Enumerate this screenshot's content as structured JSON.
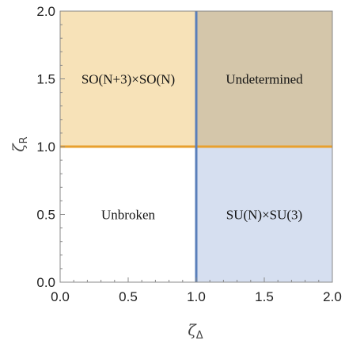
{
  "chart_data": {
    "type": "heatmap",
    "xlabel": {
      "main": "ζ",
      "sub": "Δ"
    },
    "ylabel": {
      "main": "ζ",
      "sub": "R"
    },
    "xlim": [
      0,
      2
    ],
    "ylim": [
      0,
      2
    ],
    "xticks": [
      0.0,
      0.5,
      1.0,
      1.5,
      2.0
    ],
    "yticks": [
      0.0,
      0.5,
      1.0,
      1.5,
      2.0
    ],
    "xtick_labels": [
      "0.0",
      "0.5",
      "1.0",
      "1.5",
      "2.0"
    ],
    "ytick_labels": [
      "0.0",
      "0.5",
      "1.0",
      "1.5",
      "2.0"
    ],
    "grid": false,
    "regions": [
      {
        "label": "SO(N+3)×SO(N)",
        "x": [
          0,
          1
        ],
        "y": [
          1,
          2
        ],
        "color": "#f7e2b8"
      },
      {
        "label": "Undetermined",
        "x": [
          1,
          2
        ],
        "y": [
          1,
          2
        ],
        "color": "#d4c6aa"
      },
      {
        "label": "Unbroken",
        "x": [
          0,
          1
        ],
        "y": [
          0,
          1
        ],
        "color": "#ffffff"
      },
      {
        "label": "SU(N)×SU(3)",
        "x": [
          1,
          2
        ],
        "y": [
          0,
          1
        ],
        "color": "#d6dff0"
      }
    ],
    "boundaries": [
      {
        "orientation": "horizontal",
        "at": 1.0,
        "from": 0,
        "to": 2,
        "color": "#e8a02e"
      },
      {
        "orientation": "vertical",
        "at": 1.0,
        "from": 0,
        "to": 2,
        "color": "#5a7fba"
      }
    ]
  }
}
